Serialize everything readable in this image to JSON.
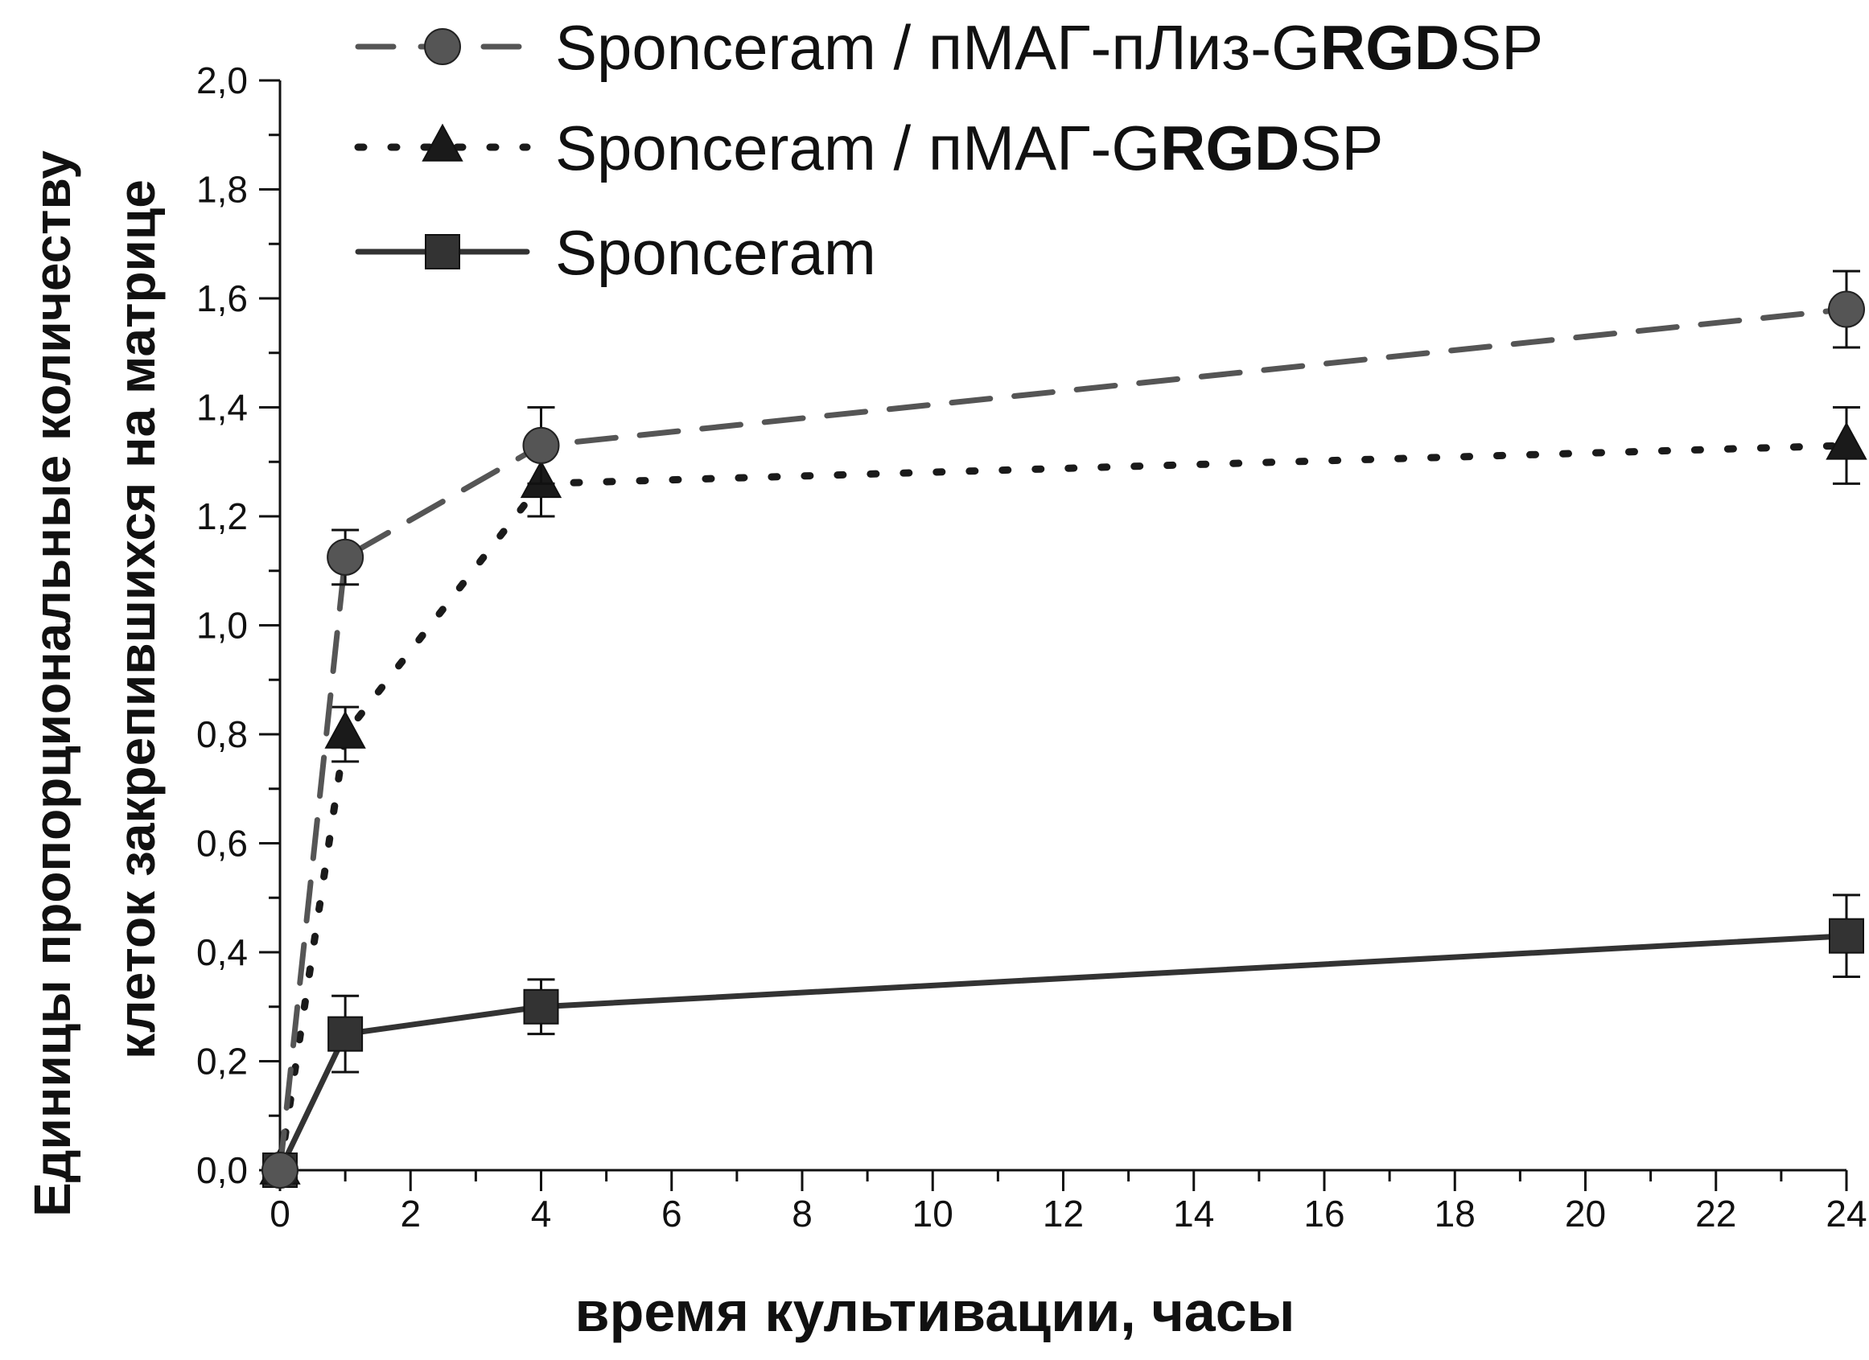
{
  "chart_data": {
    "type": "line",
    "xlabel": "время культивации, часы",
    "ylabel_line1": "Единицы пропорциональные количеству",
    "ylabel_line2": "клеток закрепившихся на матрице",
    "xlim": [
      0,
      24
    ],
    "ylim": [
      0,
      2.0
    ],
    "x_ticks": [
      "0",
      "2",
      "4",
      "6",
      "8",
      "10",
      "12",
      "14",
      "16",
      "18",
      "20",
      "22",
      "24"
    ],
    "y_ticks": [
      "0,0",
      "0,2",
      "0,4",
      "0,6",
      "0,8",
      "1,0",
      "1,2",
      "1,4",
      "1,6",
      "1,8",
      "2,0"
    ],
    "legend_position": "top",
    "series": [
      {
        "name": "Sponceram / пМАГ-пЛиз-GRGDSP",
        "legend_parts": [
          {
            "text": "Sponceram / пМАГ-пЛиз-G",
            "bold": false
          },
          {
            "text": "RGD",
            "bold": true
          },
          {
            "text": "SP",
            "bold": false
          }
        ],
        "marker": "circle",
        "line_style": "dashed",
        "color": "#555555",
        "x": [
          0,
          1,
          4,
          24
        ],
        "y": [
          0.0,
          1.125,
          1.33,
          1.58
        ],
        "err": [
          0.0,
          0.05,
          0.07,
          0.07
        ]
      },
      {
        "name": "Sponceram / пМАГ-GRGDSP",
        "legend_parts": [
          {
            "text": "Sponceram / пМАГ-G",
            "bold": false
          },
          {
            "text": "RGD",
            "bold": true
          },
          {
            "text": "SP",
            "bold": false
          }
        ],
        "marker": "triangle",
        "line_style": "dotted",
        "color": "#1a1a1a",
        "x": [
          0,
          1,
          4,
          24
        ],
        "y": [
          0.0,
          0.8,
          1.26,
          1.33
        ],
        "err": [
          0.0,
          0.05,
          0.06,
          0.07
        ]
      },
      {
        "name": "Sponceram",
        "legend_parts": [
          {
            "text": "Sponceram",
            "bold": false
          }
        ],
        "marker": "square",
        "line_style": "solid",
        "color": "#333333",
        "x": [
          0,
          1,
          4,
          24
        ],
        "y": [
          0.0,
          0.25,
          0.3,
          0.43
        ],
        "err": [
          0.0,
          0.07,
          0.05,
          0.075
        ]
      }
    ]
  }
}
